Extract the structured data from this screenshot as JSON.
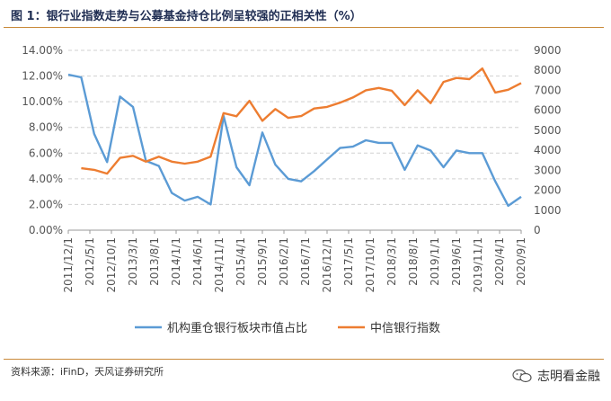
{
  "title": "图 1：银行业指数走势与公募基金持仓比例呈较强的正相关性（%）",
  "source": "资料来源：iFinD，天风证券研究所",
  "brand": "志明看金融",
  "chart_data": {
    "type": "line",
    "x_labels": [
      "2011/12/1",
      "2012/5/1",
      "2012/10/1",
      "2013/3/1",
      "2013/8/1",
      "2014/1/1",
      "2014/6/1",
      "2014/11/1",
      "2015/4/1",
      "2015/9/1",
      "2016/2/1",
      "2016/7/1",
      "2016/12/1",
      "2017/5/1",
      "2017/10/1",
      "2018/3/1",
      "2018/8/1",
      "2019/1/1",
      "2019/6/1",
      "2019/11/1",
      "2020/4/1",
      "2020/9/1"
    ],
    "y_left": {
      "ticks": [
        "0.00%",
        "2.00%",
        "4.00%",
        "6.00%",
        "8.00%",
        "10.00%",
        "12.00%",
        "14.00%"
      ],
      "range": [
        0,
        14
      ]
    },
    "y_right": {
      "ticks": [
        "0",
        "1000",
        "2000",
        "3000",
        "4000",
        "5000",
        "6000",
        "7000",
        "8000",
        "9000"
      ],
      "range": [
        0,
        9000
      ]
    },
    "colors": {
      "series1": "#5b9bd5",
      "series2": "#ed7d31",
      "grid": "#d0d0d0"
    },
    "series": [
      {
        "name": "机构重仓银行板块市值占比",
        "axis": "left",
        "points": [
          {
            "x": 0,
            "y": 12.1
          },
          {
            "x": 1,
            "y": 11.9
          },
          {
            "x": 2,
            "y": 7.5
          },
          {
            "x": 3,
            "y": 5.3
          },
          {
            "x": 4,
            "y": 10.4
          },
          {
            "x": 5,
            "y": 9.6
          },
          {
            "x": 6,
            "y": 5.4
          },
          {
            "x": 7,
            "y": 5.0
          },
          {
            "x": 8,
            "y": 2.9
          },
          {
            "x": 9,
            "y": 2.3
          },
          {
            "x": 10,
            "y": 2.6
          },
          {
            "x": 11,
            "y": 2.0
          },
          {
            "x": 12,
            "y": 8.9
          },
          {
            "x": 13,
            "y": 4.9
          },
          {
            "x": 14,
            "y": 3.5
          },
          {
            "x": 15,
            "y": 7.6
          },
          {
            "x": 16,
            "y": 5.1
          },
          {
            "x": 17,
            "y": 4.0
          },
          {
            "x": 18,
            "y": 3.8
          },
          {
            "x": 19,
            "y": 4.6
          },
          {
            "x": 20,
            "y": 5.5
          },
          {
            "x": 21,
            "y": 6.4
          },
          {
            "x": 22,
            "y": 6.5
          },
          {
            "x": 23,
            "y": 7.0
          },
          {
            "x": 24,
            "y": 6.8
          },
          {
            "x": 25,
            "y": 6.8
          },
          {
            "x": 26,
            "y": 4.7
          },
          {
            "x": 27,
            "y": 6.6
          },
          {
            "x": 28,
            "y": 6.2
          },
          {
            "x": 29,
            "y": 4.9
          },
          {
            "x": 30,
            "y": 6.2
          },
          {
            "x": 31,
            "y": 6.0
          },
          {
            "x": 32,
            "y": 6.0
          },
          {
            "x": 33,
            "y": 3.8
          },
          {
            "x": 34,
            "y": 1.9
          },
          {
            "x": 35,
            "y": 2.6
          }
        ]
      },
      {
        "name": "中信银行指数",
        "axis": "right",
        "points": [
          {
            "x": 1,
            "y": 3100
          },
          {
            "x": 2,
            "y": 3020
          },
          {
            "x": 3,
            "y": 2830
          },
          {
            "x": 4,
            "y": 3620
          },
          {
            "x": 5,
            "y": 3720
          },
          {
            "x": 6,
            "y": 3430
          },
          {
            "x": 7,
            "y": 3680
          },
          {
            "x": 8,
            "y": 3430
          },
          {
            "x": 9,
            "y": 3330
          },
          {
            "x": 10,
            "y": 3430
          },
          {
            "x": 11,
            "y": 3680
          },
          {
            "x": 12,
            "y": 5860
          },
          {
            "x": 13,
            "y": 5700
          },
          {
            "x": 14,
            "y": 6470
          },
          {
            "x": 15,
            "y": 5470
          },
          {
            "x": 16,
            "y": 6060
          },
          {
            "x": 17,
            "y": 5620
          },
          {
            "x": 18,
            "y": 5710
          },
          {
            "x": 19,
            "y": 6090
          },
          {
            "x": 20,
            "y": 6170
          },
          {
            "x": 21,
            "y": 6380
          },
          {
            "x": 22,
            "y": 6640
          },
          {
            "x": 23,
            "y": 7000
          },
          {
            "x": 24,
            "y": 7120
          },
          {
            "x": 25,
            "y": 6980
          },
          {
            "x": 26,
            "y": 6260
          },
          {
            "x": 27,
            "y": 7000
          },
          {
            "x": 28,
            "y": 6360
          },
          {
            "x": 29,
            "y": 7420
          },
          {
            "x": 30,
            "y": 7620
          },
          {
            "x": 31,
            "y": 7560
          },
          {
            "x": 32,
            "y": 8090
          },
          {
            "x": 33,
            "y": 6890
          },
          {
            "x": 34,
            "y": 7030
          },
          {
            "x": 35,
            "y": 7360
          }
        ]
      }
    ],
    "x_index_max": 35,
    "x_label_step": 1.666
  }
}
